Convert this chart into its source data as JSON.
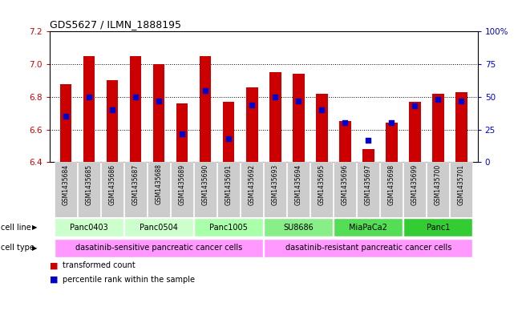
{
  "title": "GDS5627 / ILMN_1888195",
  "samples": [
    "GSM1435684",
    "GSM1435685",
    "GSM1435686",
    "GSM1435687",
    "GSM1435688",
    "GSM1435689",
    "GSM1435690",
    "GSM1435691",
    "GSM1435692",
    "GSM1435693",
    "GSM1435694",
    "GSM1435695",
    "GSM1435696",
    "GSM1435697",
    "GSM1435698",
    "GSM1435699",
    "GSM1435700",
    "GSM1435701"
  ],
  "transformed_count": [
    6.88,
    7.05,
    6.9,
    7.05,
    7.0,
    6.76,
    7.05,
    6.77,
    6.86,
    6.95,
    6.94,
    6.82,
    6.65,
    6.48,
    6.64,
    6.77,
    6.82,
    6.83
  ],
  "percentile_rank": [
    35,
    50,
    40,
    50,
    47,
    22,
    55,
    18,
    44,
    50,
    47,
    40,
    30,
    17,
    30,
    43,
    48,
    47
  ],
  "ylim_left": [
    6.4,
    7.2
  ],
  "ylim_right": [
    0,
    100
  ],
  "yticks_left": [
    6.4,
    6.6,
    6.8,
    7.0,
    7.2
  ],
  "yticks_right": [
    0,
    25,
    50,
    75,
    100
  ],
  "ytick_labels_right": [
    "0",
    "25",
    "50",
    "75",
    "100%"
  ],
  "bar_color": "#cc0000",
  "dot_color": "#0000cc",
  "bar_bottom": 6.4,
  "cell_lines": [
    {
      "label": "Panc0403",
      "start": 0,
      "end": 3,
      "color": "#ccffcc"
    },
    {
      "label": "Panc0504",
      "start": 3,
      "end": 6,
      "color": "#ccffcc"
    },
    {
      "label": "Panc1005",
      "start": 6,
      "end": 9,
      "color": "#aaffaa"
    },
    {
      "label": "SU8686",
      "start": 9,
      "end": 12,
      "color": "#88ee88"
    },
    {
      "label": "MiaPaCa2",
      "start": 12,
      "end": 15,
      "color": "#55dd55"
    },
    {
      "label": "Panc1",
      "start": 15,
      "end": 18,
      "color": "#33cc33"
    }
  ],
  "cell_type_groups": [
    {
      "label": "dasatinib-sensitive pancreatic cancer cells",
      "start": 0,
      "end": 9,
      "color": "#ff99ff"
    },
    {
      "label": "dasatinib-resistant pancreatic cancer cells",
      "start": 9,
      "end": 18,
      "color": "#ff99ff"
    }
  ],
  "row_label_cell_line": "cell line",
  "row_label_cell_type": "cell type",
  "legend_items": [
    {
      "label": "transformed count",
      "color": "#cc0000"
    },
    {
      "label": "percentile rank within the sample",
      "color": "#0000cc"
    }
  ],
  "bg_color": "#ffffff",
  "label_row_bg": "#cccccc"
}
